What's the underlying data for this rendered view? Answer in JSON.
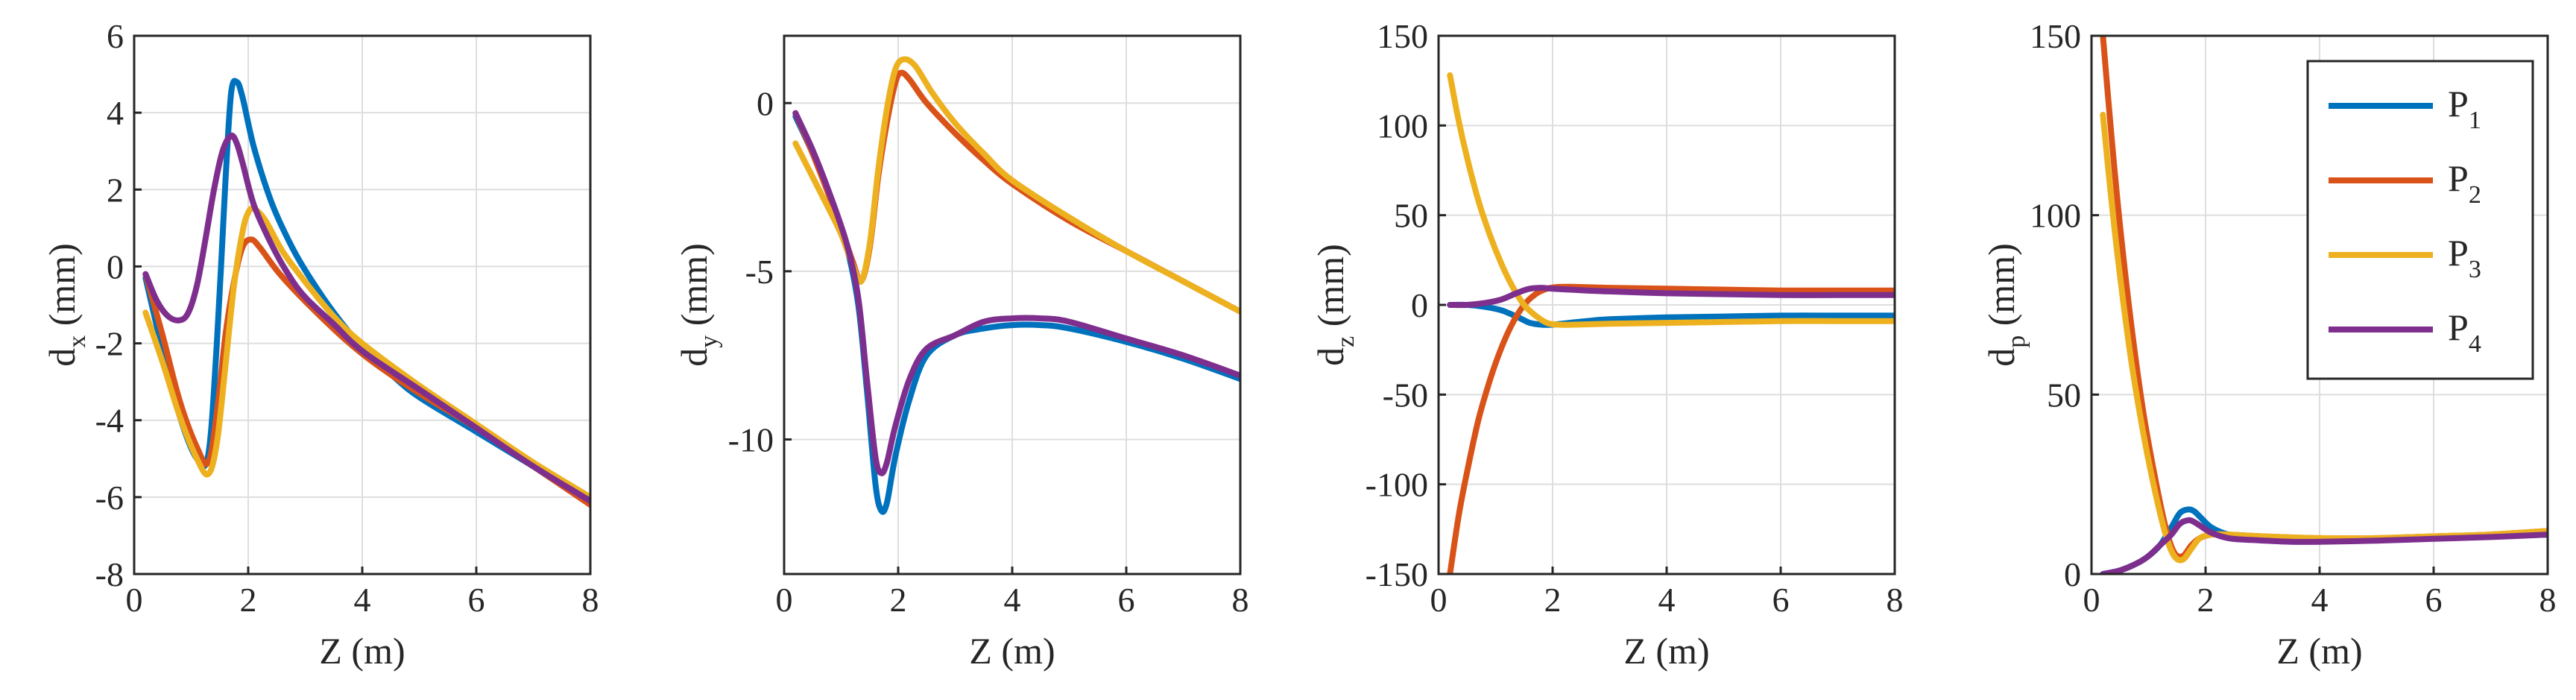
{
  "chart_data": [
    {
      "type": "line",
      "panel": "dx",
      "ylabel_main": "d",
      "ylabel_sub": "x",
      "ylabel_unit": " (mm)",
      "xlabel": "Z (m)",
      "xlim": [
        0,
        8
      ],
      "ylim": [
        -8,
        6
      ],
      "xticks": [
        0,
        2,
        4,
        6,
        8
      ],
      "yticks": [
        -8,
        -6,
        -4,
        -2,
        0,
        2,
        4,
        6
      ],
      "grid": true,
      "series": [
        {
          "name": "P1",
          "x": [
            0.2,
            0.5,
            0.8,
            1.1,
            1.3,
            1.45,
            1.6,
            1.7,
            1.8,
            1.9,
            2.1,
            2.4,
            2.7,
            3.0,
            3.5,
            4.0,
            4.5,
            5.0,
            6.0,
            7.0,
            8.0
          ],
          "y": [
            -0.3,
            -2.2,
            -3.9,
            -5.0,
            -4.9,
            -2.0,
            2.2,
            4.5,
            4.8,
            4.4,
            3.1,
            1.7,
            0.7,
            -0.1,
            -1.2,
            -2.1,
            -2.8,
            -3.4,
            -4.3,
            -5.2,
            -6.1
          ]
        },
        {
          "name": "P2",
          "x": [
            0.2,
            0.5,
            0.8,
            1.1,
            1.3,
            1.45,
            1.6,
            1.75,
            1.9,
            2.05,
            2.2,
            2.5,
            2.8,
            3.2,
            3.7,
            4.2,
            5.0,
            6.0,
            7.0,
            8.0
          ],
          "y": [
            -0.2,
            -1.8,
            -3.5,
            -4.7,
            -5.1,
            -3.8,
            -1.8,
            -0.4,
            0.5,
            0.7,
            0.5,
            -0.1,
            -0.6,
            -1.2,
            -1.9,
            -2.5,
            -3.3,
            -4.2,
            -5.2,
            -6.2
          ]
        },
        {
          "name": "P3",
          "x": [
            0.2,
            0.5,
            0.8,
            1.1,
            1.3,
            1.45,
            1.6,
            1.75,
            1.9,
            2.0,
            2.1,
            2.3,
            2.6,
            3.0,
            3.5,
            4.0,
            5.0,
            6.0,
            7.0,
            8.0
          ],
          "y": [
            -1.2,
            -2.5,
            -3.9,
            -5.0,
            -5.4,
            -4.6,
            -2.6,
            -0.5,
            0.9,
            1.4,
            1.5,
            1.2,
            0.4,
            -0.4,
            -1.3,
            -2.0,
            -3.1,
            -4.1,
            -5.1,
            -6.0
          ]
        },
        {
          "name": "P4",
          "x": [
            0.2,
            0.4,
            0.6,
            0.8,
            0.95,
            1.1,
            1.25,
            1.4,
            1.55,
            1.7,
            1.8,
            1.9,
            2.1,
            2.4,
            2.7,
            3.0,
            3.5,
            4.0,
            5.0,
            6.0,
            7.0,
            8.0
          ],
          "y": [
            -0.2,
            -0.9,
            -1.3,
            -1.4,
            -1.2,
            -0.5,
            0.7,
            2.0,
            3.0,
            3.4,
            3.2,
            2.7,
            1.6,
            0.6,
            -0.2,
            -0.8,
            -1.5,
            -2.2,
            -3.2,
            -4.2,
            -5.2,
            -6.1
          ]
        }
      ]
    },
    {
      "type": "line",
      "panel": "dy",
      "ylabel_main": "d",
      "ylabel_sub": "y",
      "ylabel_unit": " (mm)",
      "xlabel": "Z (m)",
      "xlim": [
        0,
        8
      ],
      "ylim": [
        -14,
        2
      ],
      "xticks": [
        0,
        2,
        4,
        6,
        8
      ],
      "yticks": [
        0,
        -5,
        -10
      ],
      "grid": true,
      "series": [
        {
          "name": "P1",
          "x": [
            0.2,
            0.5,
            0.8,
            1.1,
            1.3,
            1.45,
            1.6,
            1.7,
            1.8,
            1.95,
            2.2,
            2.5,
            3.0,
            3.5,
            4.0,
            4.5,
            5.0,
            6.0,
            7.0,
            8.0
          ],
          "y": [
            -0.4,
            -1.5,
            -2.8,
            -4.3,
            -6.0,
            -8.5,
            -11.3,
            -12.1,
            -11.9,
            -10.5,
            -8.8,
            -7.5,
            -6.9,
            -6.7,
            -6.6,
            -6.6,
            -6.7,
            -7.1,
            -7.6,
            -8.2
          ]
        },
        {
          "name": "P2",
          "x": [
            0.2,
            0.5,
            0.8,
            1.0,
            1.2,
            1.35,
            1.5,
            1.65,
            1.8,
            1.95,
            2.05,
            2.2,
            2.5,
            3.0,
            3.5,
            4.0,
            5.0,
            6.0,
            7.0,
            8.0
          ],
          "y": [
            -0.3,
            -1.5,
            -2.8,
            -3.7,
            -4.7,
            -5.3,
            -4.3,
            -2.2,
            -0.6,
            0.6,
            0.9,
            0.7,
            0.0,
            -0.9,
            -1.7,
            -2.4,
            -3.5,
            -4.4,
            -5.3,
            -6.2
          ]
        },
        {
          "name": "P3",
          "x": [
            0.2,
            0.5,
            0.8,
            1.0,
            1.2,
            1.35,
            1.5,
            1.65,
            1.8,
            1.95,
            2.1,
            2.3,
            2.6,
            3.0,
            3.5,
            4.0,
            5.0,
            6.0,
            7.0,
            8.0
          ],
          "y": [
            -1.2,
            -2.2,
            -3.2,
            -3.9,
            -4.8,
            -5.3,
            -4.2,
            -2.0,
            -0.2,
            1.0,
            1.3,
            1.1,
            0.3,
            -0.6,
            -1.5,
            -2.3,
            -3.4,
            -4.4,
            -5.3,
            -6.2
          ]
        },
        {
          "name": "P4",
          "x": [
            0.2,
            0.5,
            0.8,
            1.1,
            1.3,
            1.45,
            1.6,
            1.7,
            1.8,
            1.95,
            2.2,
            2.5,
            3.0,
            3.5,
            4.0,
            4.5,
            5.0,
            6.0,
            7.0,
            8.0
          ],
          "y": [
            -0.3,
            -1.4,
            -2.7,
            -4.2,
            -5.8,
            -8.2,
            -10.5,
            -11.0,
            -10.7,
            -9.6,
            -8.2,
            -7.3,
            -6.9,
            -6.5,
            -6.4,
            -6.4,
            -6.5,
            -7.0,
            -7.5,
            -8.1
          ]
        }
      ]
    },
    {
      "type": "line",
      "panel": "dz",
      "ylabel_main": "d",
      "ylabel_sub": "z",
      "ylabel_unit": " (mm)",
      "xlabel": "Z (m)",
      "xlim": [
        0,
        8
      ],
      "ylim": [
        -150,
        150
      ],
      "xticks": [
        0,
        2,
        4,
        6,
        8
      ],
      "yticks": [
        -150,
        -100,
        -50,
        0,
        50,
        100,
        150
      ],
      "grid": true,
      "series": [
        {
          "name": "P1",
          "x": [
            0.2,
            0.5,
            0.8,
            1.1,
            1.4,
            1.6,
            1.8,
            2.0,
            2.3,
            2.6,
            3.0,
            4.0,
            5.0,
            6.0,
            7.0,
            8.0
          ],
          "y": [
            0,
            0,
            -1,
            -3,
            -7,
            -10,
            -11,
            -11,
            -10,
            -9,
            -8,
            -7,
            -6.5,
            -6,
            -6,
            -6
          ]
        },
        {
          "name": "P2",
          "x": [
            0.2,
            0.35,
            0.5,
            0.7,
            0.9,
            1.1,
            1.3,
            1.5,
            1.7,
            1.9,
            2.1,
            2.4,
            3.0,
            4.0,
            5.0,
            6.0,
            7.0,
            8.0
          ],
          "y": [
            -150,
            -118,
            -93,
            -64,
            -42,
            -24,
            -10,
            0,
            6,
            9,
            10,
            10,
            9.5,
            9,
            8.5,
            8,
            8,
            8
          ]
        },
        {
          "name": "P3",
          "x": [
            0.2,
            0.35,
            0.5,
            0.7,
            0.9,
            1.1,
            1.3,
            1.5,
            1.7,
            1.9,
            2.1,
            2.4,
            3.0,
            4.0,
            5.0,
            6.0,
            7.0,
            8.0
          ],
          "y": [
            128,
            103,
            82,
            58,
            39,
            23,
            10,
            0,
            -6,
            -10,
            -11,
            -11,
            -10.5,
            -10,
            -9.5,
            -9,
            -9,
            -9
          ]
        },
        {
          "name": "P4",
          "x": [
            0.2,
            0.5,
            0.8,
            1.1,
            1.4,
            1.6,
            1.8,
            2.0,
            2.3,
            2.6,
            3.0,
            4.0,
            5.0,
            6.0,
            7.0,
            8.0
          ],
          "y": [
            0,
            0,
            1,
            3,
            7,
            9,
            9.5,
            9,
            8.5,
            8,
            7.5,
            6.5,
            6,
            5.5,
            5.5,
            5.5
          ]
        }
      ]
    },
    {
      "type": "line",
      "panel": "dp",
      "ylabel_main": "d",
      "ylabel_sub": "p",
      "ylabel_unit": " (mm)",
      "xlabel": "Z (m)",
      "xlim": [
        0,
        8
      ],
      "ylim": [
        0,
        150
      ],
      "xticks": [
        0,
        2,
        4,
        6,
        8
      ],
      "yticks": [
        0,
        50,
        100,
        150
      ],
      "grid": true,
      "legend": {
        "position": "top-right",
        "entries": [
          {
            "main": "P",
            "sub": "1"
          },
          {
            "main": "P",
            "sub": "2"
          },
          {
            "main": "P",
            "sub": "3"
          },
          {
            "main": "P",
            "sub": "4"
          }
        ]
      },
      "series": [
        {
          "name": "P1",
          "x": [
            0.2,
            0.5,
            0.8,
            1.0,
            1.2,
            1.4,
            1.55,
            1.7,
            1.8,
            1.9,
            2.1,
            2.4,
            2.8,
            3.5,
            4.0,
            5.0,
            6.0,
            7.0,
            8.0
          ],
          "y": [
            0,
            1,
            3,
            5,
            8,
            13,
            17,
            18,
            17.5,
            16,
            13,
            11,
            10,
            9.5,
            9.5,
            9.8,
            10,
            10.5,
            11
          ]
        },
        {
          "name": "P2",
          "x": [
            0.2,
            0.35,
            0.5,
            0.7,
            0.9,
            1.1,
            1.3,
            1.45,
            1.6,
            1.75,
            1.9,
            2.1,
            2.4,
            3.0,
            4.0,
            5.0,
            6.0,
            7.0,
            8.0
          ],
          "y": [
            150,
            122,
            97,
            69,
            46,
            28,
            13,
            6,
            5,
            8,
            10,
            11,
            11,
            10.5,
            10,
            10,
            10.5,
            11,
            12
          ]
        },
        {
          "name": "P3",
          "x": [
            0.2,
            0.35,
            0.5,
            0.7,
            0.9,
            1.1,
            1.3,
            1.45,
            1.6,
            1.75,
            1.9,
            2.1,
            2.4,
            3.0,
            4.0,
            5.0,
            6.0,
            7.0,
            8.0
          ],
          "y": [
            128,
            104,
            83,
            59,
            40,
            24,
            11,
            5,
            4,
            7,
            10,
            11,
            11,
            10.5,
            10,
            10,
            10.5,
            11,
            12
          ]
        },
        {
          "name": "P4",
          "x": [
            0.2,
            0.5,
            0.8,
            1.0,
            1.2,
            1.4,
            1.55,
            1.7,
            1.8,
            1.9,
            2.1,
            2.4,
            2.8,
            3.5,
            4.0,
            5.0,
            6.0,
            7.0,
            8.0
          ],
          "y": [
            0,
            1,
            3,
            5,
            8,
            11,
            14,
            15,
            14.5,
            13.5,
            11.5,
            10,
            9.5,
            9,
            9,
            9.3,
            9.8,
            10.3,
            11
          ]
        }
      ]
    }
  ],
  "colors": {
    "P1": "#0072BD",
    "P2": "#D95319",
    "P3": "#EDB120",
    "P4": "#7E2F8E",
    "grid": "#DEDEDE",
    "axis": "#262626"
  }
}
